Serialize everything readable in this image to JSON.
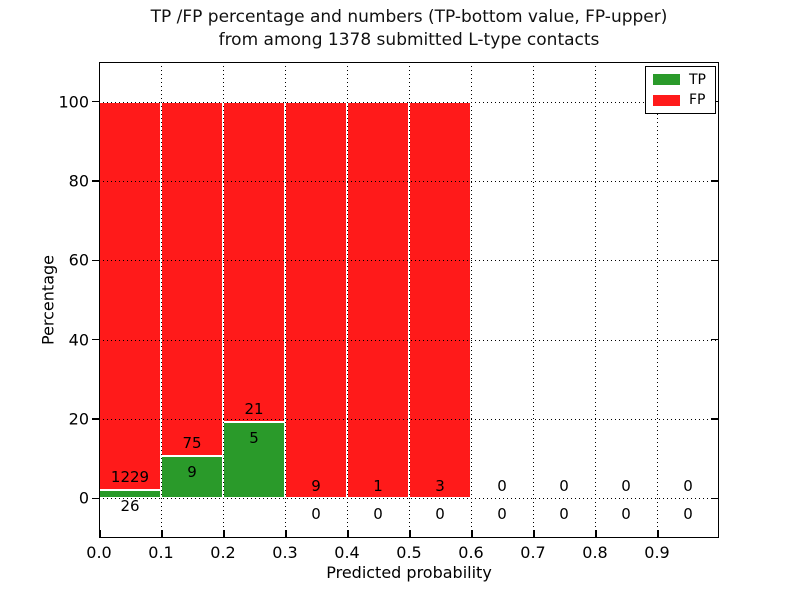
{
  "figure": {
    "title_lines": [
      "TP /FP percentage and numbers (TP-bottom value, FP-upper)",
      "from among 1378 submitted L-type contacts"
    ],
    "background_color": "#ffffff"
  },
  "chart_data": {
    "type": "bar",
    "stacked": true,
    "title": "TP /FP percentage and numbers (TP-bottom value, FP-upper)\nfrom among 1378 submitted L-type contacts",
    "xlabel": "Predicted probability",
    "ylabel": "Percentage",
    "total_contacts": 1378,
    "xlim": [
      0.0,
      1.0
    ],
    "ylim": [
      -10,
      110
    ],
    "bin_width": 0.1,
    "categories": [
      "0.0-0.1",
      "0.1-0.2",
      "0.2-0.3",
      "0.3-0.4",
      "0.4-0.5",
      "0.5-0.6",
      "0.6-0.7",
      "0.7-0.8",
      "0.8-0.9",
      "0.9-1.0"
    ],
    "x_tick_labels": [
      "0.0",
      "0.1",
      "0.2",
      "0.3",
      "0.4",
      "0.5",
      "0.6",
      "0.7",
      "0.8",
      "0.9"
    ],
    "y_ticks": [
      0,
      20,
      40,
      60,
      80,
      100
    ],
    "series": [
      {
        "name": "TP",
        "color": "#2a9a2a",
        "counts": [
          26,
          9,
          5,
          0,
          0,
          0,
          0,
          0,
          0,
          0
        ],
        "pct": [
          2.07,
          10.71,
          19.23,
          0,
          0,
          0,
          0,
          0,
          0,
          0
        ]
      },
      {
        "name": "FP",
        "color": "#ff1a1a",
        "counts": [
          1229,
          75,
          21,
          9,
          1,
          3,
          0,
          0,
          0,
          0
        ],
        "pct": [
          97.93,
          89.29,
          80.77,
          100,
          100,
          100,
          0,
          0,
          0,
          0
        ]
      }
    ],
    "annotation_rule": "FP count above green bar top, TP count below green bar top",
    "legend": {
      "position": "upper right",
      "entries": [
        {
          "label": "TP",
          "color": "#2a9a2a"
        },
        {
          "label": "FP",
          "color": "#ff1a1a"
        }
      ]
    },
    "grid": {
      "visible": true,
      "style": "dotted",
      "color": "#000000"
    },
    "bar_edge_color": "#ffffff"
  }
}
